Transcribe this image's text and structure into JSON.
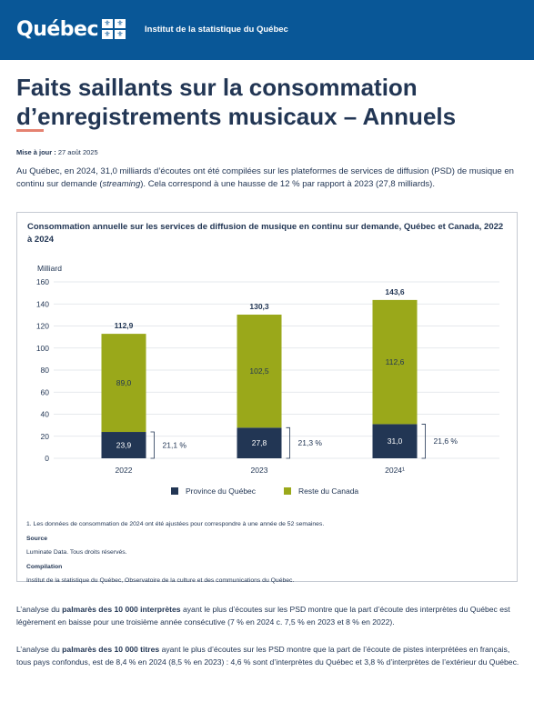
{
  "header": {
    "logo_text": "Québec",
    "flag_glyph": "⚜",
    "institute": "Institut de la statistique du Québec"
  },
  "page": {
    "title": "Faits saillants sur la consommation d’enregistrements musicaux – Annuels",
    "update_label": "Mise à jour :",
    "update_date": "27 août 2025",
    "intro_1": "Au Québec, en 2024, 31,0 milliards d’écoutes ont été compilées sur les plateformes de services de diffusion (PSD) de musique en continu sur demande (",
    "intro_italic": "streaming",
    "intro_2": "). Cela correspond à une hausse de 12 % par rapport à 2023 (27,8 milliards)."
  },
  "chart_data": {
    "type": "bar",
    "title": "Consommation annuelle sur les services de diffusion de musique en continu sur demande, Québec et Canada, 2022 à 2024",
    "ylabel": "Milliard",
    "ylim": [
      0,
      160
    ],
    "yticks": [
      0,
      20,
      40,
      60,
      80,
      100,
      120,
      140,
      160
    ],
    "ytick_labels": [
      "0",
      "20",
      "40",
      "60",
      "80",
      "100",
      "120",
      "140",
      "160"
    ],
    "grid": true,
    "stacked": true,
    "categories": [
      "2022",
      "2023",
      "2024¹"
    ],
    "series": [
      {
        "name": "Province du Québec",
        "values": [
          23.9,
          27.8,
          31.0
        ],
        "labels": [
          "23,9",
          "27,8",
          "31,0"
        ],
        "color": "#223654"
      },
      {
        "name": "Reste du Canada",
        "values": [
          89.0,
          102.5,
          112.6
        ],
        "labels": [
          "89,0",
          "102,5",
          "112,6"
        ],
        "color": "#9aa81a"
      }
    ],
    "totals": [
      "112,9",
      "130,3",
      "143,6"
    ],
    "annotations": [
      "21,1 %",
      "21,3 %",
      "21,6 %"
    ],
    "legend_position": "bottom"
  },
  "notes": {
    "footnote": "1. Les données de consommation de 2024 ont été ajustées pour correspondre à une année de 52 semaines.",
    "source_label": "Source",
    "source_text": "Luminate Data. Tous droits réservés.",
    "compilation_label": "Compilation",
    "compilation_text": "Institut de la statistique du Québec, Observatoire de la culture et des communications du Québec."
  },
  "paragraphs": {
    "p1_a": "L’analyse du ",
    "p1_b": "palmarès des 10 000 interprètes",
    "p1_c": " ayant le plus d’écoutes sur les PSD montre que la part d’écoute des interprètes du Québec est légèrement en baisse pour une troisième année consécutive (7 % en 2024 c. 7,5 % en 2023 et 8 % en 2022).",
    "p2_a": "L’analyse du ",
    "p2_b": "palmarès des 10 000 titres",
    "p2_c": " ayant le plus d’écoutes sur les PSD montre que la part de l’écoute de pistes interprétées en français, tous pays confondus, est de 8,4 % en 2024 (8,5 % en 2023) : 4,6 % sont d’interprètes du Québec et 3,8 % d’interprètes de l’extérieur du Québec."
  }
}
